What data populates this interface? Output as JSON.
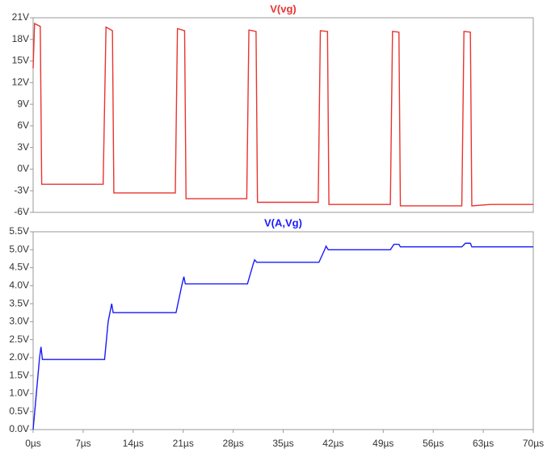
{
  "chart_data": [
    {
      "type": "line",
      "x": [
        0,
        0.2,
        1.0,
        1.2,
        9.8,
        10.2,
        11.1,
        11.3,
        19.9,
        20.2,
        21.2,
        21.4,
        29.9,
        30.2,
        31.2,
        31.4,
        39.9,
        40.2,
        41.2,
        41.4,
        50.0,
        50.3,
        51.2,
        51.4,
        60.0,
        60.3,
        61.2,
        61.4,
        64.0,
        70.0
      ],
      "series": [
        {
          "name": "V(vg)",
          "color": "#e8342f",
          "values": [
            14,
            20.2,
            19.8,
            -2.1,
            -2.1,
            19.7,
            19.2,
            -3.3,
            -3.3,
            19.5,
            19.2,
            -4.1,
            -4.1,
            19.3,
            19.1,
            -4.6,
            -4.6,
            19.2,
            19.1,
            -4.9,
            -4.9,
            19.1,
            19.0,
            -5.1,
            -5.1,
            19.1,
            19.0,
            -5.1,
            -4.9,
            -4.9
          ]
        }
      ],
      "xlim": [
        0,
        70
      ],
      "ylim": [
        -6,
        21
      ],
      "yticks": [
        {
          "value": -6,
          "label": "-6V"
        },
        {
          "value": -3,
          "label": "-3V"
        },
        {
          "value": 0,
          "label": "0V"
        },
        {
          "value": 3,
          "label": "3V"
        },
        {
          "value": 6,
          "label": "6V"
        },
        {
          "value": 9,
          "label": "9V"
        },
        {
          "value": 12,
          "label": "12V"
        },
        {
          "value": 15,
          "label": "15V"
        },
        {
          "value": 18,
          "label": "18V"
        },
        {
          "value": 21,
          "label": "21V"
        }
      ]
    },
    {
      "type": "line",
      "x": [
        0,
        0.9,
        1.1,
        1.3,
        10.0,
        10.5,
        11.0,
        11.2,
        20.0,
        20.8,
        21.1,
        21.3,
        30.0,
        30.8,
        31.0,
        31.3,
        40.0,
        40.8,
        41.0,
        41.3,
        50.0,
        50.5,
        51.2,
        51.4,
        60.0,
        60.5,
        61.2,
        61.4,
        70.0
      ],
      "series": [
        {
          "name": "V(A,Vg)",
          "color": "#1a1aff",
          "values": [
            0,
            2.0,
            2.3,
            1.95,
            1.95,
            3.0,
            3.5,
            3.25,
            3.25,
            4.0,
            4.25,
            4.05,
            4.05,
            4.6,
            4.72,
            4.65,
            4.65,
            5.0,
            5.1,
            5.0,
            5.0,
            5.15,
            5.15,
            5.08,
            5.08,
            5.18,
            5.18,
            5.08,
            5.08
          ]
        }
      ],
      "xlim": [
        0,
        70
      ],
      "ylim": [
        0,
        5.5
      ],
      "xticks": [
        {
          "value": 0,
          "label": "0µs"
        },
        {
          "value": 7,
          "label": "7µs"
        },
        {
          "value": 14,
          "label": "14µs"
        },
        {
          "value": 21,
          "label": "21µs"
        },
        {
          "value": 28,
          "label": "28µs"
        },
        {
          "value": 35,
          "label": "35µs"
        },
        {
          "value": 42,
          "label": "42µs"
        },
        {
          "value": 49,
          "label": "49µs"
        },
        {
          "value": 56,
          "label": "56µs"
        },
        {
          "value": 63,
          "label": "63µs"
        },
        {
          "value": 70,
          "label": "70µs"
        }
      ],
      "yticks": [
        {
          "value": 0,
          "label": "0.0V"
        },
        {
          "value": 0.5,
          "label": "0.5V"
        },
        {
          "value": 1,
          "label": "1.0V"
        },
        {
          "value": 1.5,
          "label": "1.5V"
        },
        {
          "value": 2,
          "label": "2.0V"
        },
        {
          "value": 2.5,
          "label": "2.5V"
        },
        {
          "value": 3,
          "label": "3.0V"
        },
        {
          "value": 3.5,
          "label": "3.5V"
        },
        {
          "value": 4,
          "label": "4.0V"
        },
        {
          "value": 4.5,
          "label": "4.5V"
        },
        {
          "value": 5,
          "label": "5.0V"
        },
        {
          "value": 5.5,
          "label": "5.5V"
        }
      ]
    }
  ]
}
